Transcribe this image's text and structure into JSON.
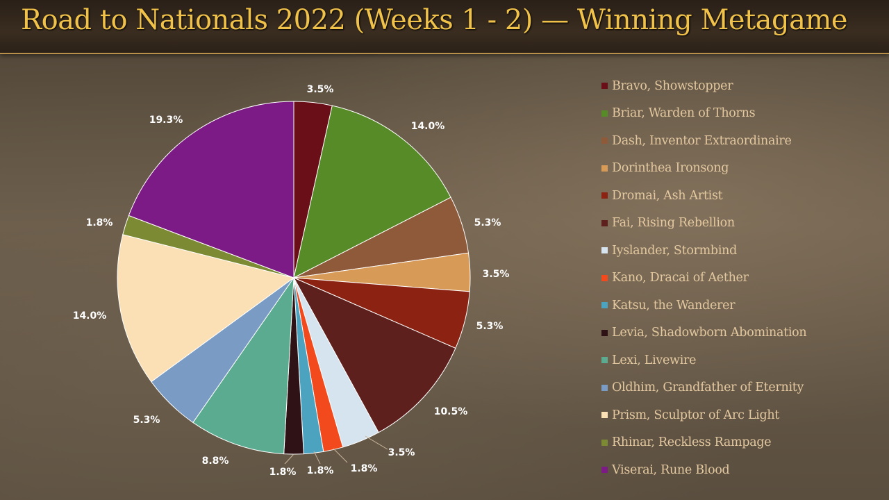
{
  "page": {
    "title": "Road to Nationals 2022 (Weeks 1 - 2) — Winning Metagame"
  },
  "chart_data": {
    "type": "pie",
    "title": "",
    "legend_placement": "right",
    "categories": [
      "Bravo, Showstopper",
      "Briar, Warden of Thorns",
      "Dash, Inventor Extraordinaire",
      "Dorinthea Ironsong",
      "Dromai, Ash Artist",
      "Fai, Rising Rebellion",
      "Iyslander, Stormbind",
      "Kano, Dracai of Aether",
      "Katsu, the Wanderer",
      "Levia, Shadowborn Abomination",
      "Lexi, Livewire",
      "Oldhim, Grandfather of Eternity",
      "Prism, Sculptor of Arc Light",
      "Rhinar, Reckless Rampage",
      "Viserai, Rune Blood"
    ],
    "values": [
      3.5,
      14.0,
      5.3,
      3.5,
      5.3,
      10.5,
      3.5,
      1.8,
      1.8,
      1.8,
      8.8,
      5.3,
      14.0,
      1.8,
      19.3
    ],
    "labels": [
      "3.5%",
      "14.0%",
      "5.3%",
      "3.5%",
      "5.3%",
      "10.5%",
      "3.5%",
      "1.8%",
      "1.8%",
      "1.8%",
      "8.8%",
      "5.3%",
      "14.0%",
      "1.8%",
      "19.3%"
    ],
    "colors": [
      "#6a0e17",
      "#578b28",
      "#8f5a3a",
      "#d89a57",
      "#8c2312",
      "#5e201c",
      "#d6e4ef",
      "#f24a1c",
      "#4ca3c0",
      "#2e1216",
      "#5aab8f",
      "#7a9cc4",
      "#fbe0b5",
      "#7d8a34",
      "#7d1b86"
    ]
  }
}
